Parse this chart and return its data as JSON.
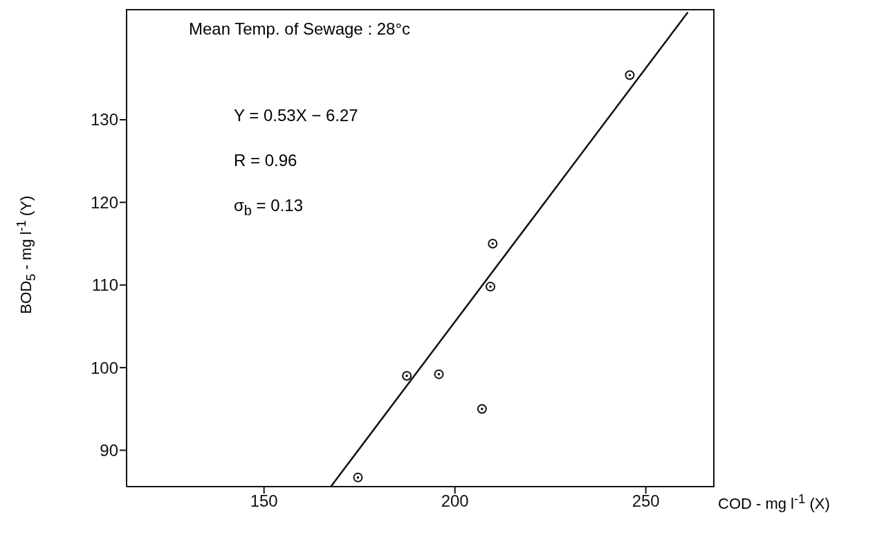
{
  "chart_data": {
    "type": "scatter",
    "xlabel": "COD - mg l$^{-1}$ (X)",
    "ylabel": "BOD$_{5}$ - mg l$^{-1}$ (Y)",
    "annotations": [
      "Mean Temp. of Sewage : 28°c",
      "Y = 0.53X − 6.27",
      "R = 0.96",
      "σ$_{b}$ = 0.13"
    ],
    "xlim": [
      114,
      268
    ],
    "ylim": [
      85.6,
      143.4
    ],
    "xticks": [
      150,
      200,
      250
    ],
    "yticks": [
      90,
      100,
      110,
      120,
      130
    ],
    "marker": "circle",
    "series": [
      {
        "color": "#111111",
        "x": [
          174.6,
          187.4,
          195.8,
          207.1,
          209.3,
          209.9,
          245.8
        ],
        "values": [
          86.7,
          99.0,
          99.2,
          95.0,
          109.8,
          115.0,
          135.4
        ]
      },
      {
        "type": "line",
        "marker": "none",
        "color": "#111111",
        "x": [
          167.5,
          261
        ],
        "values": [
          85.6,
          143
        ]
      }
    ]
  }
}
